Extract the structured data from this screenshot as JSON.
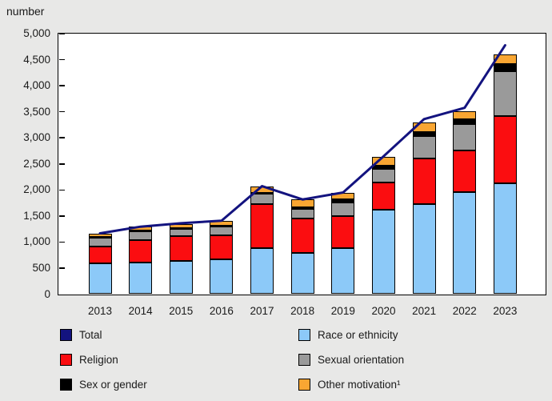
{
  "colors": {
    "background": "#e8e8e7",
    "plot_background": "#ffffff",
    "axis": "#000000",
    "text": "#1a1a1a"
  },
  "chart_data": {
    "type": "bar",
    "subtype": "stacked-bars-with-total-line",
    "ylabel": "number",
    "xlabel": "",
    "ylim": [
      0,
      5000
    ],
    "ytick_step": 500,
    "ytick_labels": [
      "0",
      "500",
      "1,000",
      "1,500",
      "2,000",
      "2,500",
      "3,000",
      "3,500",
      "4,000",
      "4,500",
      "5,000"
    ],
    "grid": false,
    "categories": [
      "2013",
      "2014",
      "2015",
      "2016",
      "2017",
      "2018",
      "2019",
      "2020",
      "2021",
      "2022",
      "2023"
    ],
    "bar_series": [
      {
        "name": "Race or ethnicity",
        "color": "#8CC9F8",
        "values": [
          585,
          610,
          640,
          665,
          885,
          795,
          885,
          1620,
          1725,
          1965,
          2130
        ]
      },
      {
        "name": "Religion",
        "color": "#FB0D10",
        "values": [
          325,
          430,
          470,
          470,
          840,
          655,
          615,
          530,
          885,
          790,
          1285
        ]
      },
      {
        "name": "Sexual orientation",
        "color": "#9A9A9A",
        "values": [
          190,
          165,
          140,
          160,
          205,
          185,
          265,
          260,
          425,
          505,
          860
        ]
      },
      {
        "name": "Sex or gender",
        "color": "#000000",
        "values": [
          5,
          10,
          10,
          15,
          15,
          25,
          55,
          50,
          70,
          90,
          135
        ]
      },
      {
        "name": "Other motivation¹",
        "color": "#F9A632",
        "values": [
          60,
          85,
          85,
          90,
          125,
          155,
          130,
          180,
          195,
          165,
          190
        ]
      }
    ],
    "line_series": {
      "name": "Total",
      "color": "#13137F",
      "values": [
        1167,
        1295,
        1362,
        1409,
        2073,
        1817,
        1951,
        2646,
        3360,
        3576,
        4777
      ]
    },
    "legend": {
      "position": "bottom",
      "columns": 2,
      "items": [
        {
          "label": "Total",
          "color": "#13137F",
          "shape": "square"
        },
        {
          "label": "Race or ethnicity",
          "color": "#8CC9F8",
          "shape": "square"
        },
        {
          "label": "Religion",
          "color": "#FB0D10",
          "shape": "square"
        },
        {
          "label": "Sexual orientation",
          "color": "#9A9A9A",
          "shape": "square"
        },
        {
          "label": "Sex or gender",
          "color": "#000000",
          "shape": "square"
        },
        {
          "label": "Other motivation¹",
          "color": "#F9A632",
          "shape": "square"
        }
      ]
    }
  }
}
